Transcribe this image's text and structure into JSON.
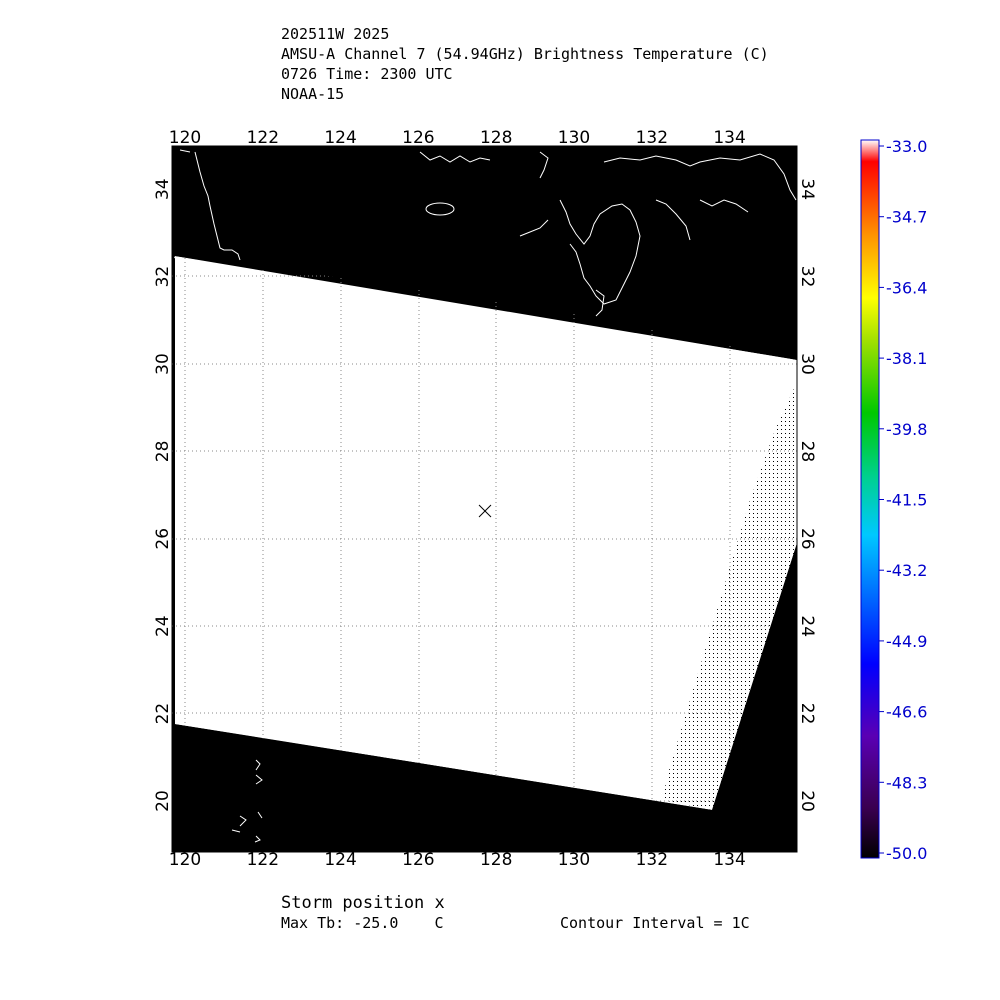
{
  "header": {
    "line1": "202511W 2025",
    "line2": "AMSU-A Channel 7 (54.94GHz) Brightness Temperature (C)",
    "line3": "0726 Time: 2300 UTC",
    "line4": "NOAA-15"
  },
  "map": {
    "lon_ticks": [
      "120",
      "122",
      "124",
      "126",
      "128",
      "130",
      "132",
      "134"
    ],
    "lat_ticks": [
      "20",
      "22",
      "24",
      "26",
      "28",
      "30",
      "32",
      "34"
    ],
    "background_color": "#000000",
    "swath_color": "#ffffff",
    "coastline_color": "#ffffff",
    "storm_marker": "x"
  },
  "colorbar": {
    "labels": [
      "-33.0",
      "-34.7",
      "-36.4",
      "-38.1",
      "-39.8",
      "-41.5",
      "-43.2",
      "-44.9",
      "-46.6",
      "-48.3",
      "-50.0"
    ],
    "label_color": "#0000cc"
  },
  "footer": {
    "storm_position": "Storm position x",
    "max_tb": "Max Tb: -25.0    C",
    "contour_interval": "Contour Interval = 1C"
  }
}
